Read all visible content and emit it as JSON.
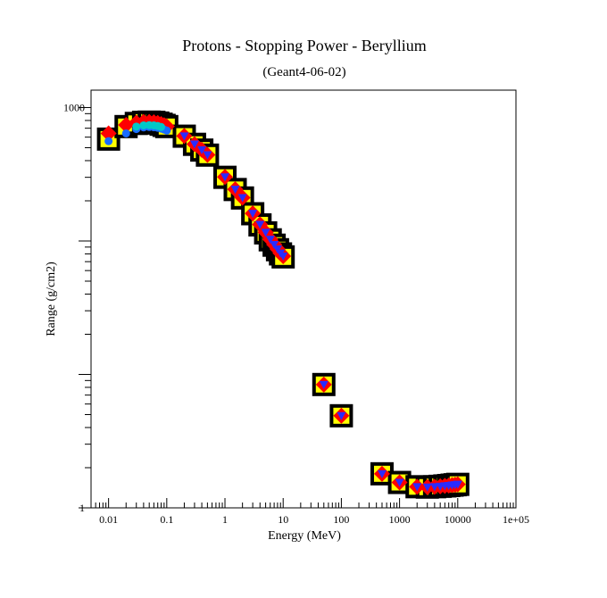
{
  "chart_data": {
    "type": "scatter",
    "title": "Protons - Stopping Power - Beryllium",
    "subtitle": "(Geant4-06-02)",
    "xlabel": "Energy (MeV)",
    "ylabel": "Range (g/cm2)",
    "x_scale": "log",
    "y_scale": "log",
    "xlim": [
      0.005,
      100000
    ],
    "ylim": [
      1,
      1350
    ],
    "grid": false,
    "x_tick_labels": [
      {
        "value": 0.01,
        "label": "0.01"
      },
      {
        "value": 0.1,
        "label": "0.1"
      },
      {
        "value": 1,
        "label": "1"
      },
      {
        "value": 10,
        "label": "10"
      },
      {
        "value": 100,
        "label": "100"
      },
      {
        "value": 1000,
        "label": "1000"
      },
      {
        "value": 10000,
        "label": "10000"
      },
      {
        "value": 100000,
        "label": "1e+05"
      }
    ],
    "y_tick_labels": [
      {
        "value": 1,
        "label": "1"
      },
      {
        "value": 1000,
        "label": "1000"
      }
    ],
    "colors": {
      "frame": "#000000",
      "reference_fill": "#ffff00",
      "reference_edge": "#000000",
      "series_red": "#ff0000",
      "series_blue": "#1a6cff",
      "series_cyan": "#00c8c8",
      "series_darkblue": "#2b2bff"
    },
    "series": [
      {
        "marker": "square",
        "color": "#ffff00",
        "x": [
          0.01,
          0.02,
          0.03,
          0.04,
          0.05,
          0.06,
          0.07,
          0.08,
          0.09,
          0.1,
          0.2,
          0.3,
          0.4,
          0.5,
          1,
          1.5,
          2,
          3,
          4,
          5,
          6,
          7,
          8,
          9,
          10,
          50,
          100,
          500,
          1000,
          2000,
          3000,
          4000,
          5000,
          6000,
          7000,
          8000,
          9000,
          10000
        ],
        "y": [
          580,
          720,
          760,
          775,
          778,
          775,
          765,
          750,
          735,
          720,
          610,
          530,
          480,
          440,
          300,
          243,
          210,
          160,
          132,
          115,
          102,
          93,
          86,
          80,
          76,
          8.4,
          4.9,
          1.8,
          1.55,
          1.44,
          1.43,
          1.44,
          1.45,
          1.46,
          1.47,
          1.48,
          1.49,
          1.5
        ]
      },
      {
        "marker": "diamond",
        "color": "#ff0000",
        "x": [
          0.01,
          0.02,
          0.03,
          0.04,
          0.05,
          0.06,
          0.07,
          0.08,
          0.09,
          0.1,
          0.2,
          0.3,
          0.4,
          0.5,
          1,
          1.5,
          2,
          3,
          4,
          5,
          6,
          7,
          8,
          9,
          10,
          50,
          100,
          500,
          1000,
          2000,
          3000,
          4000,
          5000,
          6000,
          7000,
          8000,
          9000,
          10000
        ],
        "y": [
          640,
          740,
          770,
          780,
          780,
          776,
          766,
          752,
          738,
          722,
          612,
          532,
          482,
          442,
          302,
          244,
          211,
          161,
          133,
          116,
          103,
          94,
          87,
          81,
          77,
          8.4,
          4.9,
          1.8,
          1.55,
          1.44,
          1.43,
          1.44,
          1.45,
          1.46,
          1.47,
          1.48,
          1.49,
          1.5
        ]
      },
      {
        "marker": "circle",
        "color": "#1a6cff",
        "x": [
          0.01,
          0.02,
          0.03,
          0.04,
          0.05,
          0.06,
          0.07,
          0.08,
          0.09,
          0.1
        ],
        "y": [
          560,
          640,
          690,
          710,
          715,
          712,
          705,
          695,
          684,
          672
        ]
      },
      {
        "marker": "circle",
        "color": "#00c8c8",
        "x": [
          0.03,
          0.04,
          0.05,
          0.06,
          0.07,
          0.08
        ],
        "y": [
          720,
          735,
          738,
          735,
          727,
          715
        ]
      },
      {
        "marker": "triangle-down",
        "color": "#2b2bff",
        "x": [
          0.2,
          0.3,
          0.4,
          0.5,
          1,
          1.5,
          2,
          3,
          4,
          5,
          6,
          7,
          8,
          9,
          10,
          50,
          100,
          500,
          1000,
          2000,
          3000,
          4000,
          5000,
          6000,
          7000,
          8000,
          9000,
          10000
        ],
        "y": [
          612,
          532,
          482,
          442,
          302,
          244,
          211,
          161,
          133,
          116,
          103,
          94,
          87,
          81,
          77,
          8.4,
          4.9,
          1.8,
          1.55,
          1.44,
          1.43,
          1.44,
          1.45,
          1.46,
          1.47,
          1.48,
          1.49,
          1.5
        ]
      }
    ]
  }
}
